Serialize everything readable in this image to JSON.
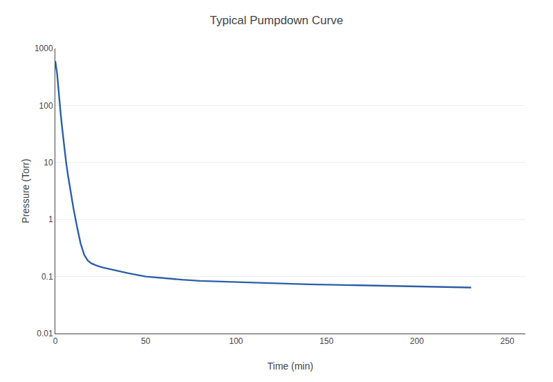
{
  "chart_data": {
    "type": "line",
    "title": "Typical Pumpdown Curve",
    "xlabel": "Time (min)",
    "ylabel": "Pressure (Torr)",
    "x": [
      0,
      0.5,
      1,
      1.5,
      2,
      3,
      4,
      5,
      6,
      7,
      8,
      9,
      10,
      12,
      14,
      16,
      18,
      20,
      23,
      26,
      30,
      35,
      40,
      50,
      60,
      70,
      80,
      90,
      100,
      110,
      120,
      140,
      160,
      180,
      200,
      230
    ],
    "values": [
      600,
      480,
      360,
      240,
      150,
      70,
      35,
      18,
      10,
      6.0,
      3.8,
      2.4,
      1.6,
      0.75,
      0.38,
      0.24,
      0.19,
      0.17,
      0.155,
      0.145,
      0.135,
      0.125,
      0.115,
      0.1,
      0.093,
      0.088,
      0.084,
      0.082,
      0.079,
      0.077,
      0.076,
      0.073,
      0.071,
      0.069,
      0.067,
      0.064
    ],
    "color": "#2b5ea7",
    "xlim": [
      0,
      260
    ],
    "ylim": [
      0.01,
      1000
    ],
    "xticks": [
      0,
      50,
      100,
      150,
      200,
      250
    ],
    "yticks": [
      0.01,
      0.1,
      1,
      10,
      100,
      1000
    ],
    "log": "y",
    "grid": "y"
  }
}
